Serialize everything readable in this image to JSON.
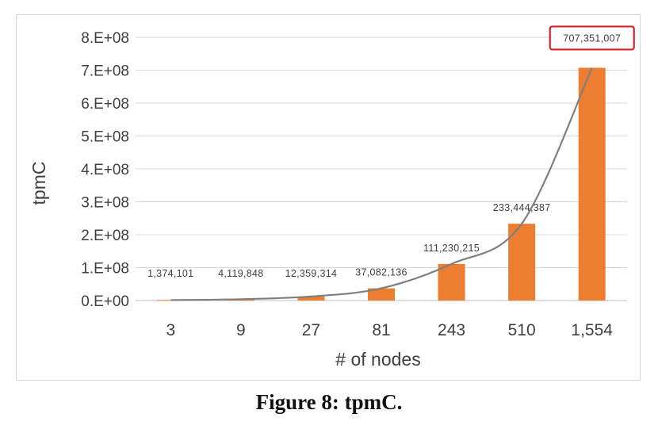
{
  "caption": "Figure 8: tpmC.",
  "chart_data": {
    "type": "bar",
    "title": "",
    "xlabel": "# of nodes",
    "ylabel": "tpmC",
    "categories": [
      "3",
      "9",
      "27",
      "81",
      "243",
      "510",
      "1,554"
    ],
    "y_ticks": [
      "0.E+00",
      "1.E+08",
      "2.E+08",
      "3.E+08",
      "4.E+08",
      "5.E+08",
      "6.E+08",
      "7.E+08",
      "8.E+08"
    ],
    "ylim": [
      0,
      800000000
    ],
    "grid": true,
    "series": [
      {
        "type": "bar",
        "color": "#ed7d31",
        "values": [
          1374101,
          4119848,
          12359314,
          37082136,
          111230215,
          233444387,
          707351007
        ],
        "labels": [
          "1,374,101",
          "4,119,848",
          "12,359,314",
          "37,082,136",
          "111,230,215",
          "233,444,387",
          "707,351,007"
        ]
      },
      {
        "type": "line",
        "color": "#7f7f7f",
        "smooth": true,
        "values": [
          1374101,
          4119848,
          12359314,
          37082136,
          111230215,
          233444387,
          707351007
        ]
      }
    ],
    "highlight": {
      "label": "707,351,007",
      "color": "#d9202a"
    }
  }
}
